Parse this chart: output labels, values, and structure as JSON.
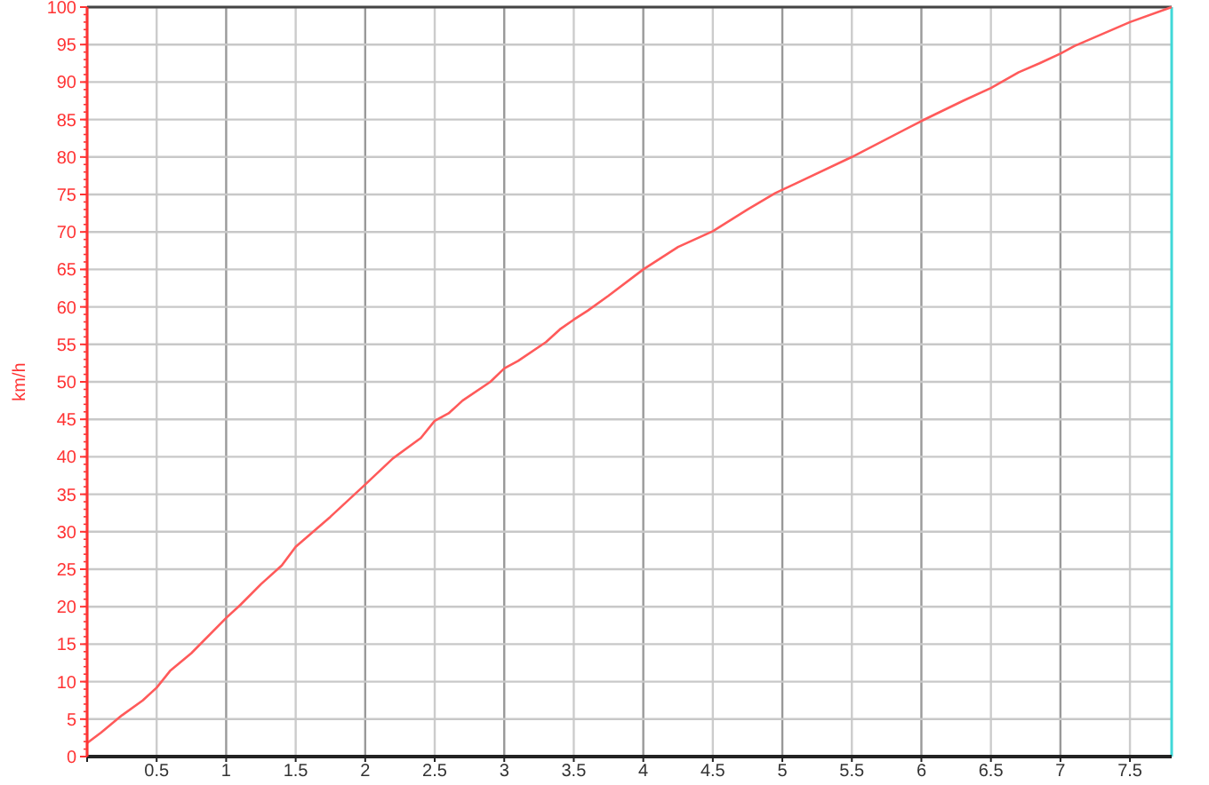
{
  "chart_data": {
    "type": "line",
    "ylabel": "km/h",
    "x": [
      0,
      0.1,
      0.25,
      0.4,
      0.5,
      0.6,
      0.75,
      1,
      1.1,
      1.25,
      1.4,
      1.5,
      1.75,
      2,
      2.2,
      2.4,
      2.5,
      2.6,
      2.7,
      2.9,
      3,
      3.1,
      3.3,
      3.4,
      3.5,
      3.6,
      3.75,
      4,
      4.25,
      4.5,
      4.75,
      4.95,
      5.1,
      5.5,
      6,
      6.3,
      6.5,
      6.7,
      6.85,
      7,
      7.1,
      7.5,
      7.8
    ],
    "series": [
      {
        "color": "#ff5a5a",
        "values": [
          1.8,
          3.2,
          5.5,
          7.5,
          9.2,
          11.5,
          13.8,
          18.5,
          20.2,
          23,
          25.5,
          28,
          32,
          36.3,
          39.8,
          42.5,
          44.8,
          45.8,
          47.5,
          50,
          51.8,
          52.8,
          55.3,
          57,
          58.3,
          59.5,
          61.5,
          65,
          68,
          70.1,
          73,
          75.2,
          76.5,
          80,
          84.8,
          87.5,
          89.2,
          91.3,
          92.5,
          93.8,
          94.8,
          98,
          100
        ]
      }
    ],
    "xlim": [
      0,
      7.8
    ],
    "xticks": [
      {
        "value": 0,
        "label": null
      },
      0.5,
      1,
      1.5,
      2,
      2.5,
      3,
      3.5,
      4,
      4.5,
      5,
      5.5,
      6,
      6.5,
      7,
      7.5
    ],
    "ylim": [
      0,
      100
    ],
    "yticks": [
      0,
      5,
      10,
      15,
      20,
      25,
      30,
      35,
      40,
      45,
      50,
      55,
      60,
      65,
      70,
      75,
      80,
      85,
      90,
      95,
      100
    ],
    "grid": true,
    "marker": "none",
    "line_style": "solid",
    "ref_lines": [
      {
        "axis": "x",
        "value": 7.8,
        "label": null,
        "color": "#40d8d8"
      }
    ]
  }
}
